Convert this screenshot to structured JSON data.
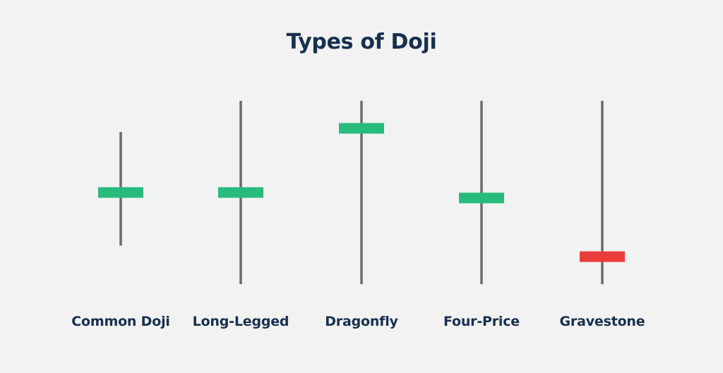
{
  "title": "Types of Doji",
  "colors": {
    "background": "#f2f2f2",
    "title_text": "#17304f",
    "wick": "#6b6b6b",
    "body_bullish": "#27bb7c",
    "body_bearish": "#ec3b3b"
  },
  "doji_types": [
    {
      "label": "Common Doji",
      "body_color": "green",
      "wick_top": 0.17,
      "wick_bottom": 0.79,
      "body": 0.5
    },
    {
      "label": "Long-Legged",
      "body_color": "green",
      "wick_top": 0.0,
      "wick_bottom": 1.0,
      "body": 0.5
    },
    {
      "label": "Dragonfly",
      "body_color": "green",
      "wick_top": 0.0,
      "wick_bottom": 1.0,
      "body": 0.15
    },
    {
      "label": "Four-Price",
      "body_color": "green",
      "wick_top": 0.0,
      "wick_bottom": 1.0,
      "body": 0.53
    },
    {
      "label": "Gravestone",
      "body_color": "red",
      "wick_top": 0.0,
      "wick_bottom": 1.0,
      "body": 0.85
    }
  ]
}
